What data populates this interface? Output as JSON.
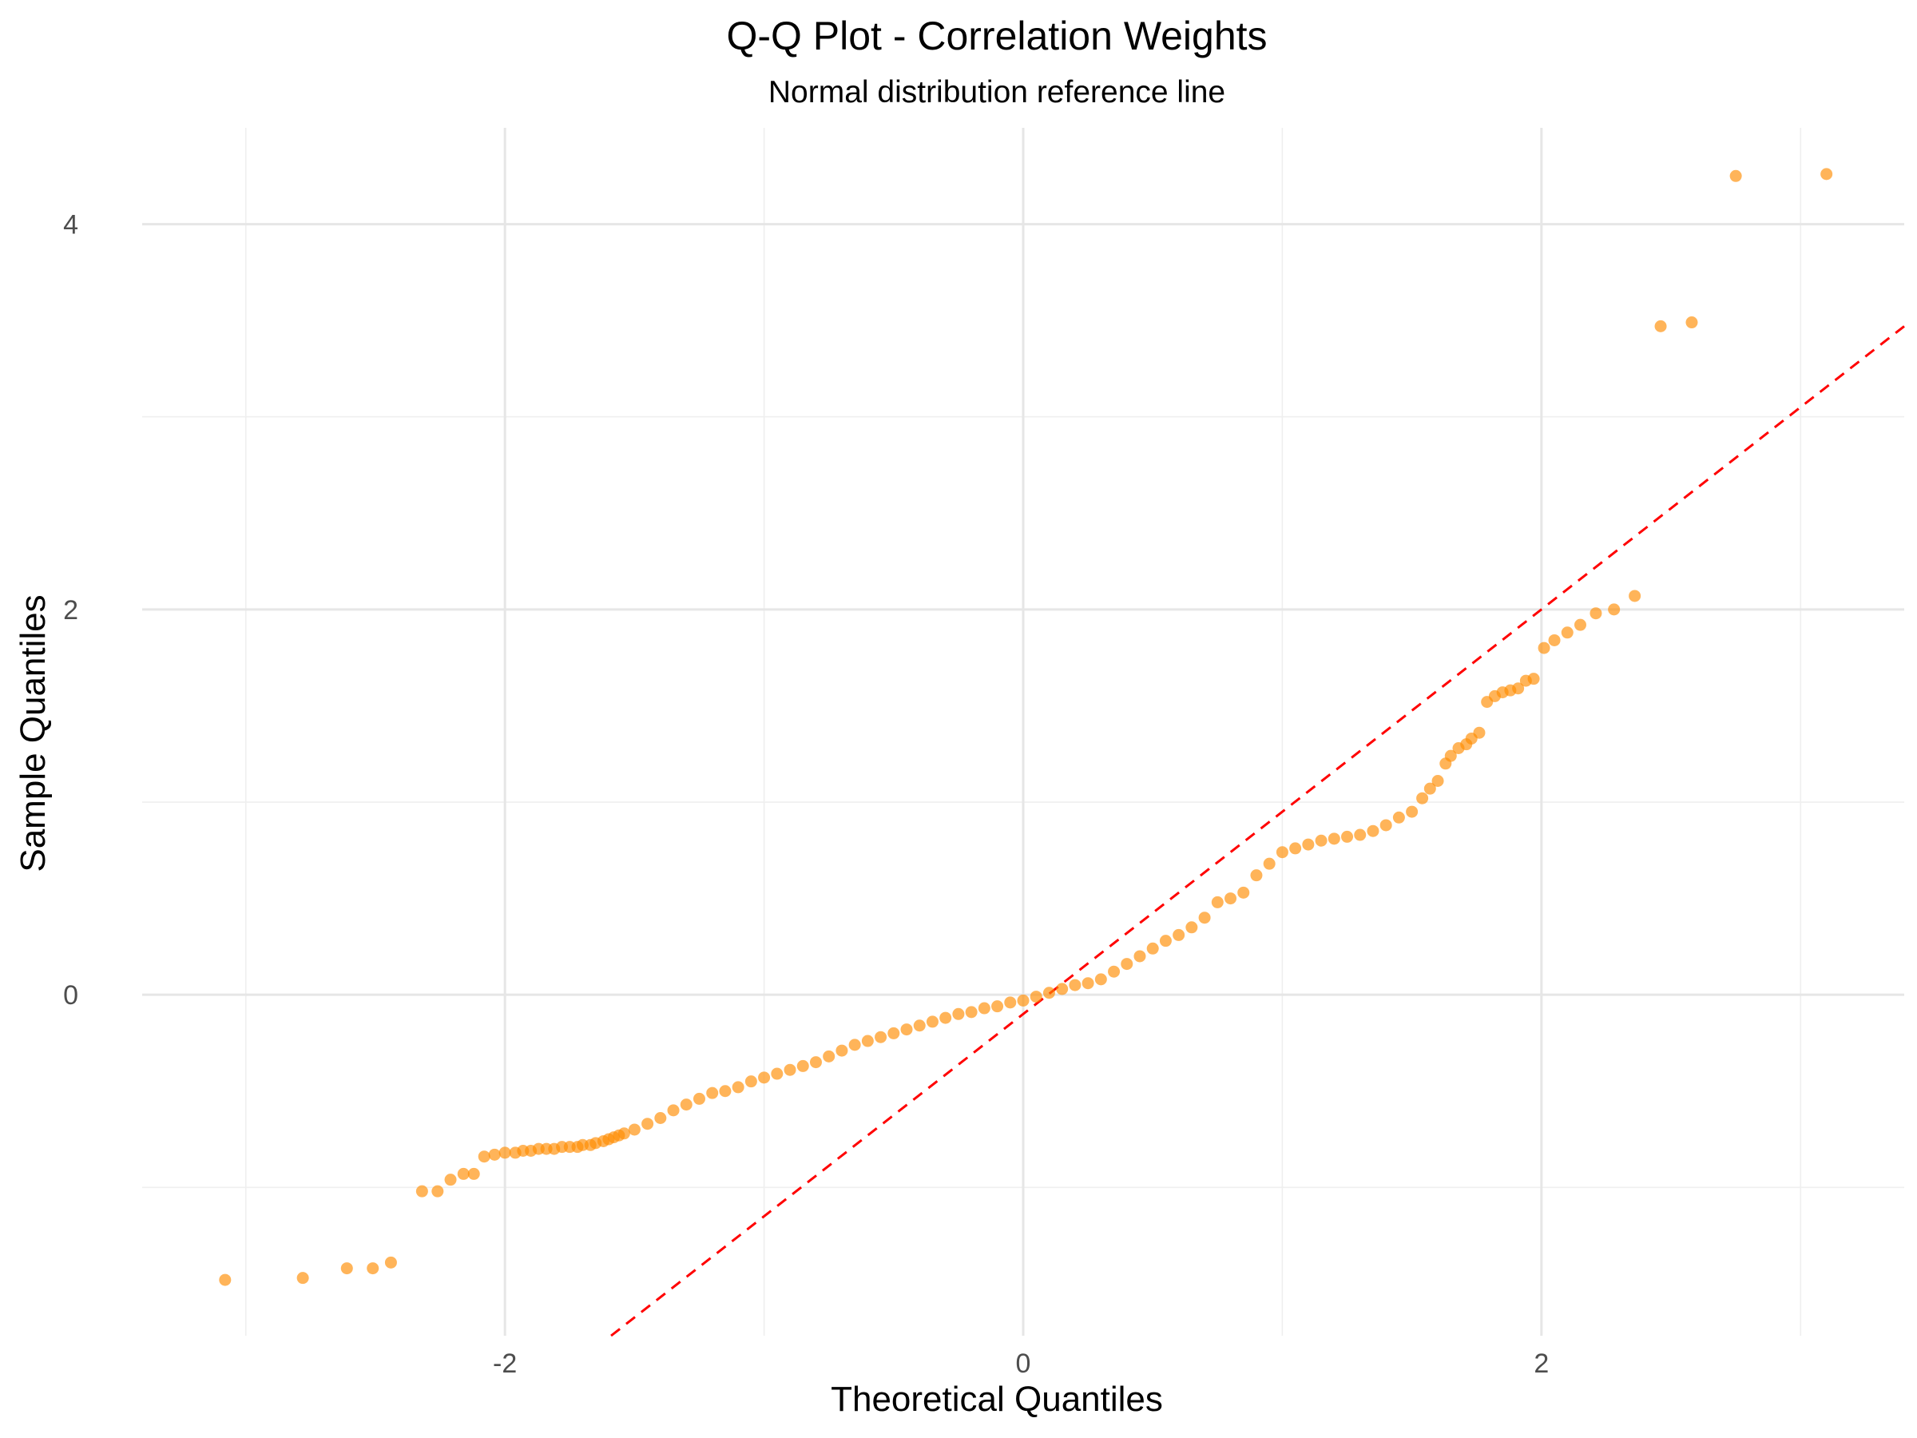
{
  "chart_data": {
    "type": "scatter",
    "title": "Q-Q Plot - Correlation Weights",
    "subtitle": "Normal distribution reference line",
    "xlabel": "Theoretical Quantiles",
    "ylabel": "Sample Quantiles",
    "xlim": [
      -3.4,
      3.4
    ],
    "ylim": [
      -1.77,
      4.5
    ],
    "x_major_ticks": [
      -2,
      0,
      2
    ],
    "x_minor_ticks": [
      -3,
      -1,
      1,
      3
    ],
    "y_major_ticks": [
      0,
      2,
      4
    ],
    "y_minor_ticks": [
      -1,
      1,
      3
    ],
    "x_tick_labels": [
      "-2",
      "0",
      "2"
    ],
    "y_tick_labels": [
      "0",
      "2",
      "4"
    ],
    "grid": true,
    "colors": {
      "points": "#ff8c00",
      "reference_line": "#ff0000",
      "grid": "#e6e6e6",
      "background": "#ffffff"
    },
    "reference_line": {
      "intercept": -0.1,
      "slope": 1.05
    },
    "series": [
      {
        "points_x": [
          -3.08,
          -2.78,
          -2.61,
          -2.51,
          -2.44,
          -2.32,
          -2.26,
          -2.21,
          -2.16,
          -2.12,
          -2.08,
          -2.04,
          -2.0,
          -1.96,
          -1.93,
          -1.9,
          -1.87,
          -1.84,
          -1.81,
          -1.78,
          -1.75,
          -1.72,
          -1.7,
          -1.67,
          -1.65,
          -1.62,
          -1.6,
          -1.58,
          -1.56,
          -1.54,
          -1.5,
          -1.45,
          -1.4,
          -1.35,
          -1.3,
          -1.25,
          -1.2,
          -1.15,
          -1.1,
          -1.05,
          -1.0,
          -0.95,
          -0.9,
          -0.85,
          -0.8,
          -0.75,
          -0.7,
          -0.65,
          -0.6,
          -0.55,
          -0.5,
          -0.45,
          -0.4,
          -0.35,
          -0.3,
          -0.25,
          -0.2,
          -0.15,
          -0.1,
          -0.05,
          0.0,
          0.05,
          0.1,
          0.15,
          0.2,
          0.25,
          0.3,
          0.35,
          0.4,
          0.45,
          0.5,
          0.55,
          0.6,
          0.65,
          0.7,
          0.75,
          0.8,
          0.85,
          0.9,
          0.95,
          1.0,
          1.05,
          1.1,
          1.15,
          1.2,
          1.25,
          1.3,
          1.35,
          1.4,
          1.45,
          1.5,
          1.54,
          1.57,
          1.6,
          1.63,
          1.65,
          1.68,
          1.71,
          1.73,
          1.76,
          1.79,
          1.82,
          1.85,
          1.88,
          1.91,
          1.94,
          1.97,
          2.01,
          2.05,
          2.1,
          2.15,
          2.21,
          2.28,
          2.36,
          2.46,
          2.58,
          2.75,
          3.1
        ],
        "points_y": [
          -1.48,
          -1.47,
          -1.42,
          -1.42,
          -1.39,
          -1.02,
          -1.02,
          -0.96,
          -0.93,
          -0.93,
          -0.84,
          -0.83,
          -0.82,
          -0.82,
          -0.81,
          -0.81,
          -0.8,
          -0.8,
          -0.8,
          -0.79,
          -0.79,
          -0.79,
          -0.78,
          -0.78,
          -0.77,
          -0.76,
          -0.75,
          -0.74,
          -0.73,
          -0.72,
          -0.7,
          -0.67,
          -0.64,
          -0.6,
          -0.57,
          -0.54,
          -0.51,
          -0.5,
          -0.48,
          -0.45,
          -0.43,
          -0.41,
          -0.39,
          -0.37,
          -0.35,
          -0.32,
          -0.29,
          -0.26,
          -0.24,
          -0.22,
          -0.2,
          -0.18,
          -0.16,
          -0.14,
          -0.12,
          -0.1,
          -0.09,
          -0.07,
          -0.06,
          -0.04,
          -0.03,
          -0.01,
          0.01,
          0.03,
          0.05,
          0.06,
          0.08,
          0.12,
          0.16,
          0.2,
          0.24,
          0.28,
          0.31,
          0.35,
          0.4,
          0.48,
          0.5,
          0.53,
          0.62,
          0.68,
          0.74,
          0.76,
          0.78,
          0.8,
          0.81,
          0.82,
          0.83,
          0.85,
          0.88,
          0.92,
          0.95,
          1.02,
          1.07,
          1.11,
          1.2,
          1.24,
          1.28,
          1.3,
          1.33,
          1.36,
          1.52,
          1.55,
          1.57,
          1.58,
          1.59,
          1.63,
          1.64,
          1.8,
          1.84,
          1.88,
          1.92,
          1.98,
          2.0,
          2.07,
          3.47,
          3.49,
          4.25,
          4.26
        ]
      }
    ]
  }
}
